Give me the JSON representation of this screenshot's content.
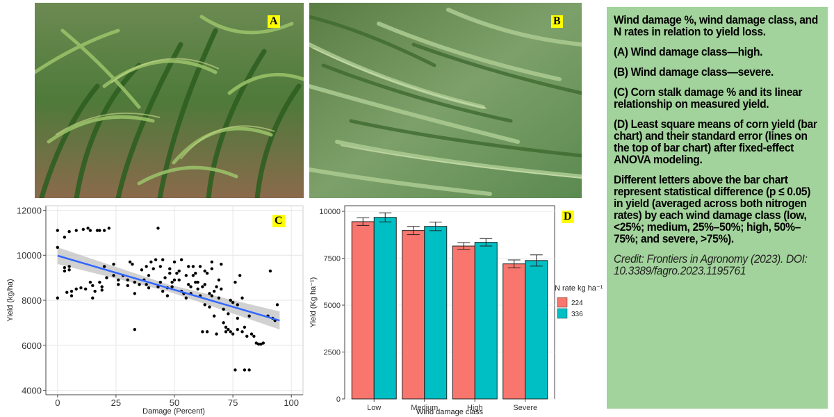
{
  "panels": {
    "a_label": "A",
    "b_label": "B",
    "c_label": "C",
    "d_label": "D"
  },
  "colors": {
    "caption_bg": "#a3d39c",
    "label_bg": "#ffff00",
    "series_224": "#f8766d",
    "series_336": "#00bfc4",
    "fit_line": "#3366ff"
  },
  "caption": {
    "line1": "Wind damage %, wind damage class, and N rates in relation to yield loss.",
    "line2": "(A) Wind damage class—high.",
    "line3": "(B) Wind damage class—severe.",
    "line4": "(C) Corn stalk damage % and its linear relationship on measured yield.",
    "line5": "(D) Least square means of corn yield (bar chart) and their standard error (lines on the top of bar chart) after fixed-effect ANOVA modeling.",
    "line6": "Different letters above the bar chart represent statistical difference (p ≤ 0.05) in yield (averaged across both nitrogen rates) by each wind damage class (low, <25%; medium, 25%–50%; high, 50%–75%; and severe, >75%).",
    "credit": "Credit: Frontiers in Agronomy (2023). DOI: 10.3389/fagro.2023.1195761"
  },
  "chart_data": [
    {
      "type": "scatter",
      "xlabel": "Damage (Percent)",
      "ylabel": "Yield (kg/ha)",
      "xlim": [
        -5,
        105
      ],
      "ylim": [
        3800,
        12200
      ],
      "xticks": [
        0,
        25,
        50,
        75,
        100
      ],
      "yticks": [
        4000,
        6000,
        8000,
        10000,
        12000
      ],
      "grid": true,
      "fit": {
        "x": [
          0,
          95
        ],
        "y": [
          9980,
          7100
        ]
      },
      "points": [
        [
          0,
          11100
        ],
        [
          0,
          10350
        ],
        [
          0,
          8100
        ],
        [
          3,
          10800
        ],
        [
          3,
          9450
        ],
        [
          3,
          9300
        ],
        [
          4,
          8350
        ],
        [
          5,
          11050
        ],
        [
          5,
          9500
        ],
        [
          5,
          9350
        ],
        [
          6,
          8400
        ],
        [
          6,
          8200
        ],
        [
          8,
          11100
        ],
        [
          8,
          8500
        ],
        [
          10,
          8550
        ],
        [
          11,
          11150
        ],
        [
          12,
          8500
        ],
        [
          13,
          11200
        ],
        [
          14,
          11100
        ],
        [
          14,
          8800
        ],
        [
          15,
          8650
        ],
        [
          15,
          8100
        ],
        [
          16,
          8400
        ],
        [
          17,
          11100
        ],
        [
          18,
          11100
        ],
        [
          18,
          8800
        ],
        [
          19,
          8600
        ],
        [
          19,
          8450
        ],
        [
          20,
          9500
        ],
        [
          20,
          11100
        ],
        [
          21,
          9000
        ],
        [
          22,
          11200
        ],
        [
          24,
          9600
        ],
        [
          26,
          8700
        ],
        [
          28,
          9100
        ],
        [
          30,
          8900
        ],
        [
          30,
          8650
        ],
        [
          31,
          9700
        ],
        [
          32,
          9600
        ],
        [
          33,
          8300
        ],
        [
          33,
          8800
        ],
        [
          33,
          6700
        ],
        [
          35,
          8700
        ],
        [
          36,
          9350
        ],
        [
          37,
          8900
        ],
        [
          38,
          9500
        ],
        [
          39,
          9100
        ],
        [
          39,
          8550
        ],
        [
          40,
          9700
        ],
        [
          41,
          9400
        ],
        [
          42,
          9800
        ],
        [
          43,
          8600
        ],
        [
          43,
          11200
        ],
        [
          44,
          9500
        ],
        [
          45,
          9800
        ],
        [
          45,
          8400
        ],
        [
          46,
          9000
        ],
        [
          47,
          8550
        ],
        [
          47,
          8200
        ],
        [
          48,
          9400
        ],
        [
          49,
          8800
        ],
        [
          49,
          8600
        ],
        [
          50,
          9700
        ],
        [
          51,
          9200
        ],
        [
          52,
          9300
        ],
        [
          52,
          8900
        ],
        [
          53,
          9800
        ],
        [
          53,
          8400
        ],
        [
          54,
          8300
        ],
        [
          55,
          8100
        ],
        [
          55,
          9100
        ],
        [
          56,
          9500
        ],
        [
          57,
          8600
        ],
        [
          57,
          8300
        ],
        [
          58,
          9100
        ],
        [
          59,
          9200
        ],
        [
          59,
          8800
        ],
        [
          60,
          8800
        ],
        [
          60,
          8500
        ],
        [
          61,
          8200
        ],
        [
          62,
          8600
        ],
        [
          63,
          9300
        ],
        [
          63,
          8700
        ],
        [
          63,
          7800
        ],
        [
          64,
          9200
        ],
        [
          64,
          6600
        ],
        [
          65,
          8300
        ],
        [
          65,
          7700
        ],
        [
          66,
          9400
        ],
        [
          66,
          8200
        ],
        [
          67,
          8400
        ],
        [
          67,
          7300
        ],
        [
          68,
          8600
        ],
        [
          68,
          6500
        ],
        [
          69,
          8900
        ],
        [
          70,
          9600
        ],
        [
          70,
          8500
        ],
        [
          71,
          7600
        ],
        [
          71,
          7000
        ],
        [
          72,
          6800
        ],
        [
          72,
          6600
        ],
        [
          73,
          7400
        ],
        [
          74,
          8000
        ],
        [
          74,
          6600
        ],
        [
          75,
          7900
        ],
        [
          75,
          6500
        ],
        [
          76,
          4900
        ],
        [
          76,
          8800
        ],
        [
          77,
          7200
        ],
        [
          77,
          6700
        ],
        [
          78,
          9100
        ],
        [
          79,
          6600
        ],
        [
          79,
          8100
        ],
        [
          80,
          6800
        ],
        [
          81,
          6400
        ],
        [
          82,
          4900
        ],
        [
          82,
          7300
        ],
        [
          83,
          6500
        ],
        [
          84,
          6400
        ],
        [
          85,
          6100
        ],
        [
          86,
          6050
        ],
        [
          87,
          6050
        ],
        [
          88,
          6100
        ],
        [
          90,
          7300
        ],
        [
          91,
          9300
        ],
        [
          92,
          7200
        ],
        [
          93,
          7100
        ],
        [
          94,
          7800
        ],
        [
          80,
          4900
        ],
        [
          66,
          9700
        ],
        [
          58,
          9500
        ],
        [
          48,
          9200
        ],
        [
          38,
          8700
        ],
        [
          26,
          8900
        ],
        [
          24,
          9100
        ],
        [
          44,
          8800
        ],
        [
          50,
          8900
        ],
        [
          56,
          8700
        ],
        [
          61,
          9500
        ],
        [
          69,
          8100
        ],
        [
          73,
          6700
        ],
        [
          77,
          7800
        ],
        [
          62,
          6600
        ]
      ]
    },
    {
      "type": "bar",
      "xlabel": "Wind damage class",
      "ylabel": "Yield (Kg ha⁻¹)",
      "categories": [
        "Low",
        "Medium",
        "High",
        "Severe"
      ],
      "ylim": [
        0,
        10300
      ],
      "yticks": [
        0,
        2500,
        5000,
        7500,
        10000
      ],
      "legend_title": "N rate kg ha⁻¹",
      "legend_position": "right",
      "series": [
        {
          "name": "224",
          "values": [
            9450,
            8980,
            8150,
            7200
          ],
          "se": [
            200,
            220,
            180,
            210
          ]
        },
        {
          "name": "336",
          "values": [
            9680,
            9200,
            8350,
            7380
          ],
          "se": [
            240,
            230,
            200,
            300
          ]
        }
      ]
    }
  ]
}
